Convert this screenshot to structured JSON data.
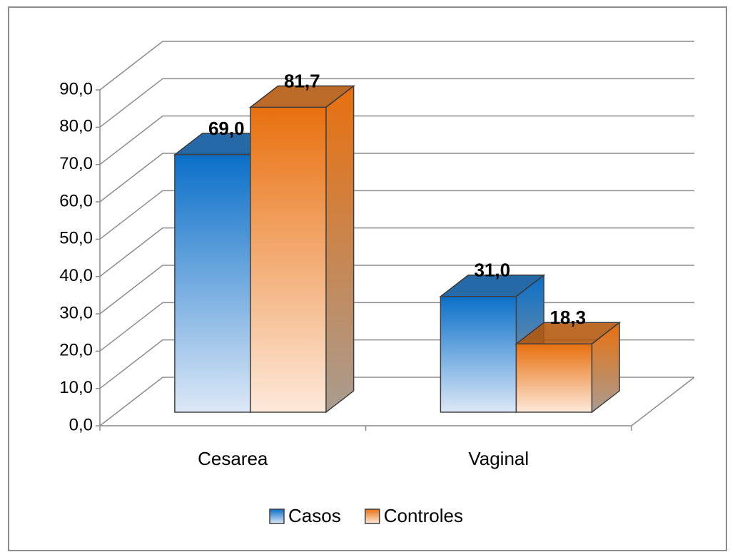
{
  "chart_data": {
    "type": "bar3d",
    "categories": [
      "Cesarea",
      "Vaginal"
    ],
    "series": [
      {
        "name": "Casos",
        "color": "#0a6fc8",
        "values": [
          69.0,
          31.0
        ],
        "value_labels": [
          "69,0",
          "31,0"
        ]
      },
      {
        "name": "Controles",
        "color": "#e8700f",
        "values": [
          81.7,
          18.3
        ],
        "value_labels": [
          "81,7",
          "18,3"
        ]
      }
    ],
    "ylim": [
      0,
      90
    ],
    "yticks": [
      {
        "value": 0,
        "label": "0,0"
      },
      {
        "value": 10,
        "label": "10,0"
      },
      {
        "value": 20,
        "label": "20,0"
      },
      {
        "value": 30,
        "label": "30,0"
      },
      {
        "value": 40,
        "label": "40,0"
      },
      {
        "value": 50,
        "label": "50,0"
      },
      {
        "value": 60,
        "label": "60,0"
      },
      {
        "value": 70,
        "label": "70,0"
      },
      {
        "value": 80,
        "label": "80,0"
      },
      {
        "value": 90,
        "label": "90,0"
      }
    ],
    "grid": true,
    "legend": "bottom"
  }
}
